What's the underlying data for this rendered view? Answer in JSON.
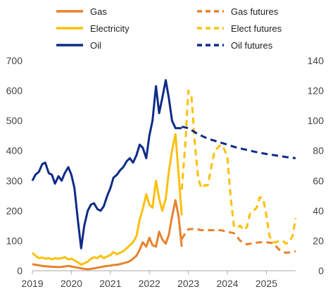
{
  "chart_data": {
    "type": "line",
    "x_range": [
      2019.0,
      2025.75
    ],
    "x_ticks": [
      "2019",
      "2020",
      "2021",
      "2022",
      "2023",
      "2024",
      "2025"
    ],
    "y_left": {
      "range": [
        0,
        700
      ],
      "ticks": [
        "0",
        "100",
        "200",
        "300",
        "400",
        "500",
        "600",
        "700"
      ]
    },
    "y_right": {
      "range": [
        0,
        140
      ],
      "ticks": [
        "0",
        "20",
        "40",
        "60",
        "80",
        "100",
        "120",
        "140"
      ]
    },
    "grid": false,
    "legend_position": "top",
    "series": [
      {
        "name": "Gas",
        "axis": "left",
        "style": "solid",
        "color": "#e8822e",
        "x": [
          2019.0,
          2019.08,
          2019.17,
          2019.25,
          2019.33,
          2019.42,
          2019.5,
          2019.58,
          2019.67,
          2019.75,
          2019.83,
          2019.92,
          2020.0,
          2020.08,
          2020.17,
          2020.25,
          2020.33,
          2020.42,
          2020.5,
          2020.58,
          2020.67,
          2020.75,
          2020.83,
          2020.92,
          2021.0,
          2021.08,
          2021.17,
          2021.25,
          2021.33,
          2021.42,
          2021.5,
          2021.58,
          2021.67,
          2021.75,
          2021.83,
          2021.92,
          2022.0,
          2022.08,
          2022.17,
          2022.25,
          2022.33,
          2022.42,
          2022.5,
          2022.58,
          2022.67,
          2022.75,
          2022.83
        ],
        "y": [
          22,
          20,
          18,
          16,
          15,
          14,
          13,
          13,
          12,
          13,
          14,
          16,
          14,
          12,
          10,
          8,
          6,
          5,
          6,
          8,
          10,
          12,
          14,
          16,
          17,
          19,
          20,
          22,
          25,
          28,
          32,
          40,
          50,
          70,
          95,
          80,
          110,
          85,
          80,
          130,
          105,
          90,
          120,
          180,
          235,
          180,
          80
        ]
      },
      {
        "name": "Electricity",
        "axis": "left",
        "style": "solid",
        "color": "#fcc00d",
        "x": [
          2019.0,
          2019.08,
          2019.17,
          2019.25,
          2019.33,
          2019.42,
          2019.5,
          2019.58,
          2019.67,
          2019.75,
          2019.83,
          2019.92,
          2020.0,
          2020.08,
          2020.17,
          2020.25,
          2020.33,
          2020.42,
          2020.5,
          2020.58,
          2020.67,
          2020.75,
          2020.83,
          2020.92,
          2021.0,
          2021.08,
          2021.17,
          2021.25,
          2021.33,
          2021.42,
          2021.5,
          2021.58,
          2021.67,
          2021.75,
          2021.83,
          2021.92,
          2022.0,
          2022.08,
          2022.17,
          2022.25,
          2022.33,
          2022.42,
          2022.5,
          2022.58,
          2022.67,
          2022.75,
          2022.83
        ],
        "y": [
          60,
          50,
          42,
          44,
          40,
          42,
          38,
          42,
          40,
          42,
          45,
          38,
          40,
          35,
          28,
          20,
          25,
          30,
          40,
          45,
          42,
          50,
          42,
          48,
          52,
          62,
          55,
          60,
          65,
          75,
          85,
          95,
          115,
          170,
          205,
          255,
          220,
          210,
          300,
          240,
          200,
          240,
          330,
          400,
          455,
          320,
          185
        ]
      },
      {
        "name": "Oil",
        "axis": "right",
        "style": "solid",
        "color": "#0d2b87",
        "x": [
          2019.0,
          2019.08,
          2019.17,
          2019.25,
          2019.33,
          2019.42,
          2019.5,
          2019.58,
          2019.67,
          2019.75,
          2019.83,
          2019.92,
          2020.0,
          2020.08,
          2020.17,
          2020.25,
          2020.33,
          2020.42,
          2020.5,
          2020.58,
          2020.67,
          2020.75,
          2020.83,
          2020.92,
          2021.0,
          2021.08,
          2021.17,
          2021.25,
          2021.33,
          2021.42,
          2021.5,
          2021.58,
          2021.67,
          2021.75,
          2021.83,
          2021.92,
          2022.0,
          2022.08,
          2022.17,
          2022.25,
          2022.33,
          2022.42,
          2022.5,
          2022.58,
          2022.67,
          2022.75,
          2022.83
        ],
        "y": [
          60,
          64,
          66,
          71,
          72,
          65,
          64,
          58,
          63,
          60,
          65,
          69,
          64,
          55,
          33,
          15,
          30,
          40,
          44,
          45,
          41,
          40,
          43,
          50,
          55,
          62,
          64,
          67,
          69,
          73,
          75,
          72,
          77,
          84,
          82,
          75,
          90,
          100,
          123,
          105,
          115,
          127,
          115,
          100,
          95,
          95,
          95
        ]
      },
      {
        "name": "Gas futures",
        "axis": "left",
        "style": "dashed",
        "color": "#e8822e",
        "x": [
          2022.83,
          2022.92,
          2023.0,
          2023.17,
          2023.33,
          2023.5,
          2023.67,
          2023.83,
          2024.0,
          2024.17,
          2024.33,
          2024.5,
          2024.67,
          2024.83,
          2025.0,
          2025.17,
          2025.33,
          2025.5,
          2025.67,
          2025.75
        ],
        "y": [
          105,
          125,
          138,
          140,
          135,
          135,
          135,
          135,
          130,
          125,
          100,
          88,
          92,
          95,
          95,
          92,
          70,
          60,
          62,
          65
        ]
      },
      {
        "name": "Elect futures",
        "axis": "left",
        "style": "dashed",
        "color": "#fcc00d",
        "x": [
          2022.83,
          2022.92,
          2023.0,
          2023.08,
          2023.17,
          2023.25,
          2023.33,
          2023.42,
          2023.5,
          2023.58,
          2023.67,
          2023.75,
          2023.83,
          2023.92,
          2024.0,
          2024.08,
          2024.17,
          2024.25,
          2024.33,
          2024.42,
          2024.5,
          2024.58,
          2024.67,
          2024.75,
          2024.83,
          2024.92,
          2025.0,
          2025.08,
          2025.17,
          2025.25,
          2025.33,
          2025.42,
          2025.5,
          2025.58,
          2025.67,
          2025.75
        ],
        "y": [
          270,
          420,
          600,
          580,
          420,
          310,
          275,
          285,
          285,
          340,
          400,
          410,
          420,
          405,
          380,
          250,
          145,
          145,
          150,
          135,
          145,
          190,
          200,
          210,
          245,
          240,
          185,
          115,
          95,
          95,
          100,
          100,
          90,
          95,
          115,
          175
        ]
      },
      {
        "name": "Oil futures",
        "axis": "right",
        "style": "dashed",
        "color": "#0d2b87",
        "x": [
          2022.83,
          2023.0,
          2023.25,
          2023.5,
          2023.75,
          2024.0,
          2024.25,
          2024.5,
          2024.75,
          2025.0,
          2025.25,
          2025.5,
          2025.75
        ],
        "y": [
          96,
          95,
          91,
          88,
          86,
          84,
          82,
          80.5,
          79,
          77.8,
          76.8,
          75.8,
          75
        ]
      }
    ]
  }
}
